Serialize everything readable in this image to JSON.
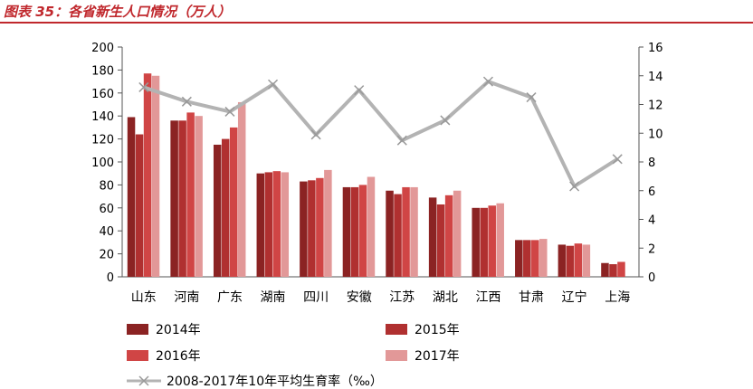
{
  "caption": "图表 35：各省新生人口情况（万人）",
  "chart_data": {
    "type": "bar",
    "title": "",
    "categories": [
      "山东",
      "河南",
      "广东",
      "湖南",
      "四川",
      "安徽",
      "江苏",
      "湖北",
      "江西",
      "甘肃",
      "辽宁",
      "上海"
    ],
    "series": [
      {
        "name": "2014年",
        "type": "bar",
        "axis": "left",
        "color": "#8b2323",
        "values": [
          139,
          136,
          115,
          90,
          83,
          78,
          75,
          69,
          60,
          32,
          28,
          12
        ]
      },
      {
        "name": "2015年",
        "type": "bar",
        "axis": "left",
        "color": "#b03030",
        "values": [
          124,
          136,
          120,
          91,
          84,
          78,
          72,
          63,
          60,
          32,
          27,
          11
        ]
      },
      {
        "name": "2016年",
        "type": "bar",
        "axis": "left",
        "color": "#d04545",
        "values": [
          177,
          143,
          130,
          92,
          86,
          80,
          78,
          71,
          62,
          32,
          29,
          13
        ]
      },
      {
        "name": "2017年",
        "type": "bar",
        "axis": "left",
        "color": "#e29898",
        "values": [
          175,
          140,
          152,
          91,
          93,
          87,
          78,
          75,
          64,
          33,
          28,
          0
        ]
      },
      {
        "name": "2008-2017年10年平均生育率（‰）",
        "type": "line",
        "axis": "right",
        "color": "#b3b3b3",
        "values": [
          13.2,
          12.2,
          11.5,
          13.4,
          9.9,
          13.0,
          9.5,
          10.9,
          13.6,
          12.5,
          6.3,
          8.2
        ]
      }
    ],
    "left_axis": {
      "ylim": [
        0,
        200
      ],
      "ticks": [
        "0",
        "20",
        "40",
        "60",
        "80",
        "100",
        "120",
        "140",
        "160",
        "180",
        "200"
      ]
    },
    "right_axis": {
      "ylim": [
        0,
        16
      ],
      "ticks": [
        "0",
        "2",
        "4",
        "6",
        "8",
        "10",
        "12",
        "14",
        "16"
      ]
    },
    "grid": false,
    "legend_position": "bottom"
  }
}
